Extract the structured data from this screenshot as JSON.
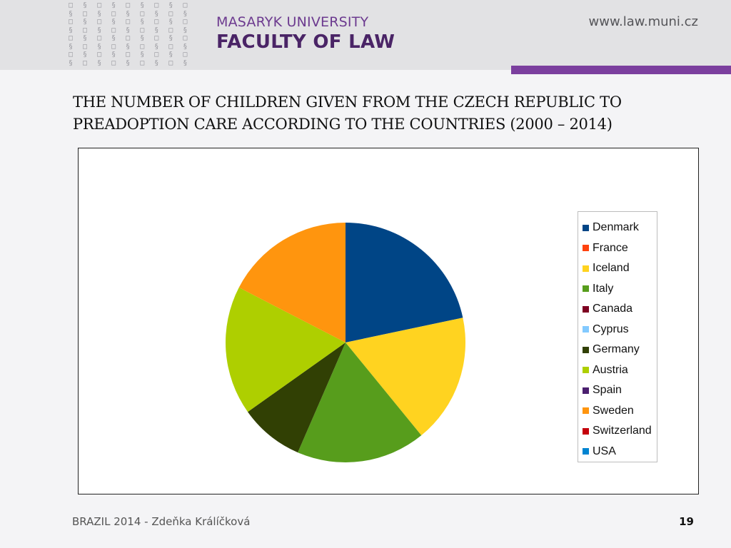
{
  "header": {
    "university": "MASARYK UNIVERSITY",
    "faculty": "FACULTY OF LAW",
    "website": "www.law.muni.cz",
    "pattern_glyphs": "□ § □ § □ § □ § □ §\n§ □ § □ § □ § □ § □\n□ § □ § □ § □ § □ §\n§ □ § □ § □ § □ § □\n□ § □ § □ § □ § □ §\n§ □ § □ § □ § □ § □\n□ § □ § □ § □ § □ §\n§ □ § □ § □ § □ § □"
  },
  "slide": {
    "title_line1": "THE NUMBER OF CHILDREN GIVEN FROM THE CZECH REPUBLIC TO",
    "title_line2": "PREADOPTION CARE ACCORDING TO THE COUNTRIES (2000 – 2014)"
  },
  "chart_data": {
    "type": "pie",
    "categories": [
      "Denmark",
      "France",
      "Iceland",
      "Italy",
      "Canada",
      "Cyprus",
      "Germany",
      "Austria",
      "Spain",
      "Sweden",
      "Switzerland",
      "USA"
    ],
    "values": [
      20.8,
      0,
      16.7,
      16.7,
      0,
      0,
      8.3,
      16.7,
      0,
      16.7,
      0,
      0
    ],
    "colors": [
      "#004586",
      "#ff420e",
      "#ffd320",
      "#579d1c",
      "#7e0021",
      "#83caff",
      "#314004",
      "#aecf00",
      "#4b1f6f",
      "#ff950e",
      "#c5000b",
      "#0084d1"
    ],
    "legend_position": "right"
  },
  "footer": {
    "left_text": "BRAZIL 2014 - Zdeňka Králíčková",
    "page_number": "19"
  }
}
